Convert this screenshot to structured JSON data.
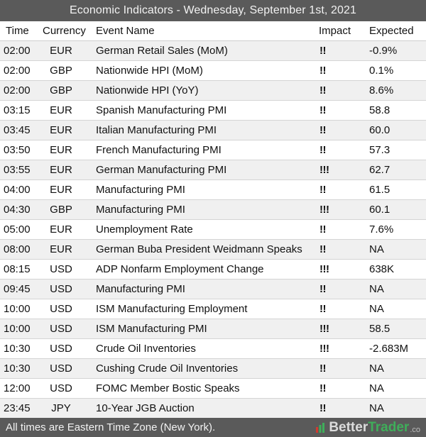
{
  "title": "Economic Indicators - Wednesday, September 1st, 2021",
  "columns": {
    "time": "Time",
    "currency": "Currency",
    "event": "Event Name",
    "impact": "Impact",
    "expected": "Expected"
  },
  "rows": [
    {
      "time": "02:00",
      "currency": "EUR",
      "event": "German Retail Sales (MoM)",
      "impact": "!!",
      "expected": "-0.9%"
    },
    {
      "time": "02:00",
      "currency": "GBP",
      "event": "Nationwide HPI (MoM)",
      "impact": "!!",
      "expected": "0.1%"
    },
    {
      "time": "02:00",
      "currency": "GBP",
      "event": "Nationwide HPI (YoY)",
      "impact": "!!",
      "expected": "8.6%"
    },
    {
      "time": "03:15",
      "currency": "EUR",
      "event": "Spanish Manufacturing PMI",
      "impact": "!!",
      "expected": "58.8"
    },
    {
      "time": "03:45",
      "currency": "EUR",
      "event": "Italian Manufacturing PMI",
      "impact": "!!",
      "expected": "60.0"
    },
    {
      "time": "03:50",
      "currency": "EUR",
      "event": "French Manufacturing PMI",
      "impact": "!!",
      "expected": "57.3"
    },
    {
      "time": "03:55",
      "currency": "EUR",
      "event": "German Manufacturing PMI",
      "impact": "!!!",
      "expected": "62.7"
    },
    {
      "time": "04:00",
      "currency": "EUR",
      "event": "Manufacturing PMI",
      "impact": "!!",
      "expected": "61.5"
    },
    {
      "time": "04:30",
      "currency": "GBP",
      "event": "Manufacturing PMI",
      "impact": "!!!",
      "expected": "60.1"
    },
    {
      "time": "05:00",
      "currency": "EUR",
      "event": "Unemployment Rate",
      "impact": "!!",
      "expected": "7.6%"
    },
    {
      "time": "08:00",
      "currency": "EUR",
      "event": "German Buba President Weidmann Speaks",
      "impact": "!!",
      "expected": "NA"
    },
    {
      "time": "08:15",
      "currency": "USD",
      "event": "ADP Nonfarm Employment Change",
      "impact": "!!!",
      "expected": "638K"
    },
    {
      "time": "09:45",
      "currency": "USD",
      "event": "Manufacturing PMI",
      "impact": "!!",
      "expected": "NA"
    },
    {
      "time": "10:00",
      "currency": "USD",
      "event": "ISM Manufacturing Employment",
      "impact": "!!",
      "expected": "NA"
    },
    {
      "time": "10:00",
      "currency": "USD",
      "event": "ISM Manufacturing PMI",
      "impact": "!!!",
      "expected": "58.5"
    },
    {
      "time": "10:30",
      "currency": "USD",
      "event": "Crude Oil Inventories",
      "impact": "!!!",
      "expected": "-2.683M"
    },
    {
      "time": "10:30",
      "currency": "USD",
      "event": "Cushing Crude Oil Inventories",
      "impact": "!!",
      "expected": "NA"
    },
    {
      "time": "12:00",
      "currency": "USD",
      "event": "FOMC Member Bostic Speaks",
      "impact": "!!",
      "expected": "NA"
    },
    {
      "time": "23:45",
      "currency": "JPY",
      "event": "10-Year JGB Auction",
      "impact": "!!",
      "expected": "NA"
    }
  ],
  "footer": {
    "note": "All times are Eastern Time Zone (New York).",
    "brand_a": "Better",
    "brand_b": "Trader",
    "brand_c": ".co",
    "brand_icon": "bar-chart-icon"
  },
  "colors": {
    "bar_bg": "#5a5a5a",
    "row_alt": "#f0f0f0",
    "brand_green": "#3fae5a",
    "brand_red": "#d23a2e"
  }
}
